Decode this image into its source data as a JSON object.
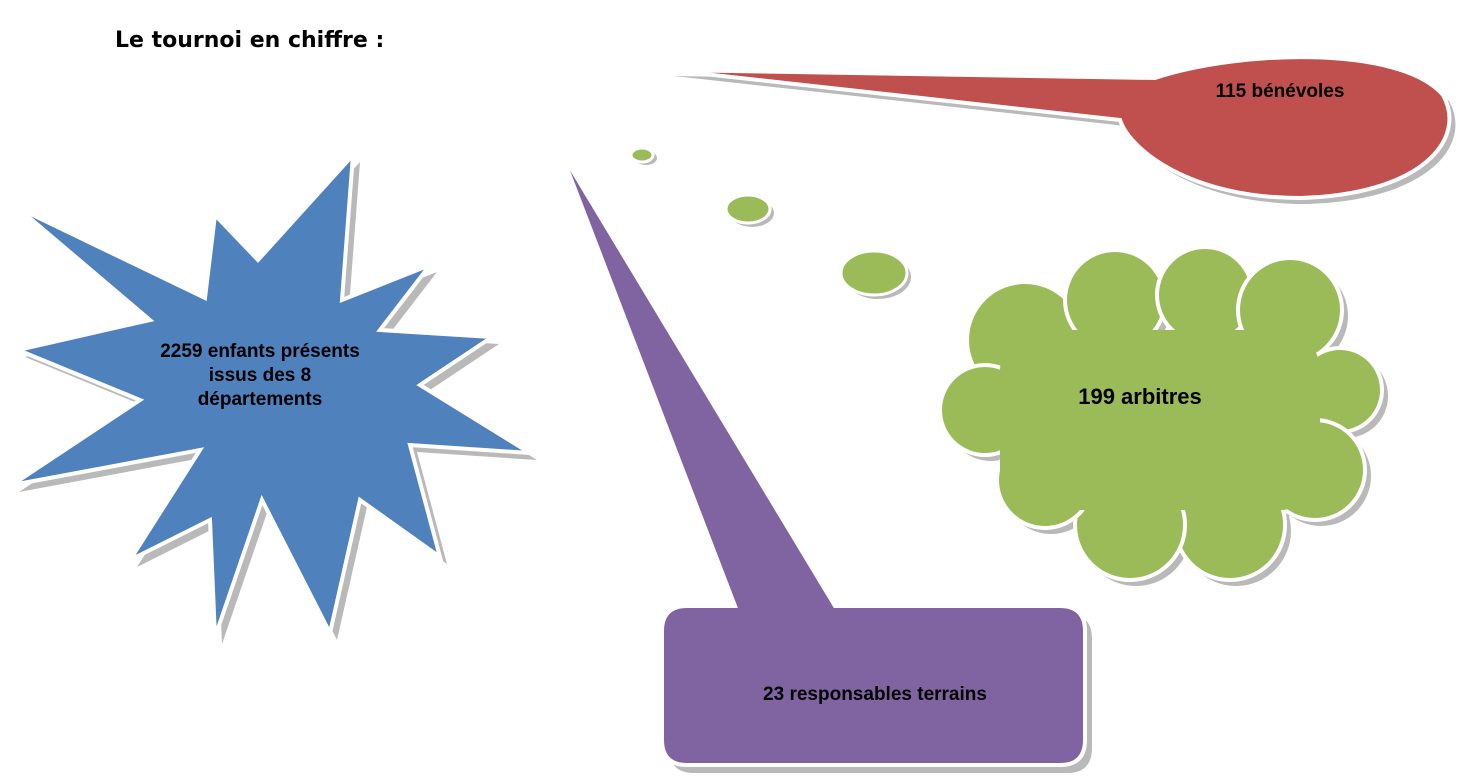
{
  "heading": "Le tournoi en chiffre :",
  "callouts": {
    "benevoles": "115 bénévoles",
    "arbitres": "199 arbitres",
    "enfants_line1": "2259 enfants présents",
    "enfants_line2": "issus des 8",
    "enfants_line3": "départements",
    "responsables": "23 responsables terrains"
  },
  "colors": {
    "red": "#c0504d",
    "green": "#9bbb59",
    "blue": "#4f81bd",
    "purple": "#8064a2"
  }
}
